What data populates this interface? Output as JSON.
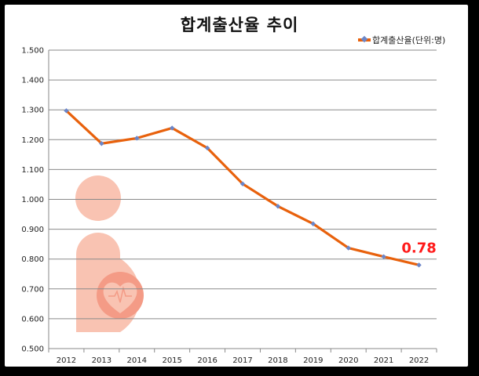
{
  "chart_data": {
    "type": "line",
    "title": "합계출산율 추이",
    "categories": [
      "2012",
      "2013",
      "2014",
      "2015",
      "2016",
      "2017",
      "2018",
      "2019",
      "2020",
      "2021",
      "2022"
    ],
    "series": [
      {
        "name": "합계출산율(단위:명)",
        "values": [
          1.297,
          1.187,
          1.205,
          1.239,
          1.172,
          1.052,
          0.977,
          0.918,
          0.837,
          0.808,
          0.78
        ]
      }
    ],
    "ylim": [
      0.5,
      1.5
    ],
    "yticks": [
      "0.500",
      "0.600",
      "0.700",
      "0.800",
      "0.900",
      "1.000",
      "1.100",
      "1.200",
      "1.300",
      "1.400",
      "1.500"
    ],
    "grid": true,
    "legend_position": "top-right",
    "annotation": {
      "text": "0.78",
      "category": "2022"
    },
    "colors": {
      "line": "#e8610c",
      "marker": "#6b86c8",
      "annotation": "#ff1a1a",
      "watermark": "#f9c3b2"
    },
    "watermark_icon": "mother-heart-logo"
  }
}
